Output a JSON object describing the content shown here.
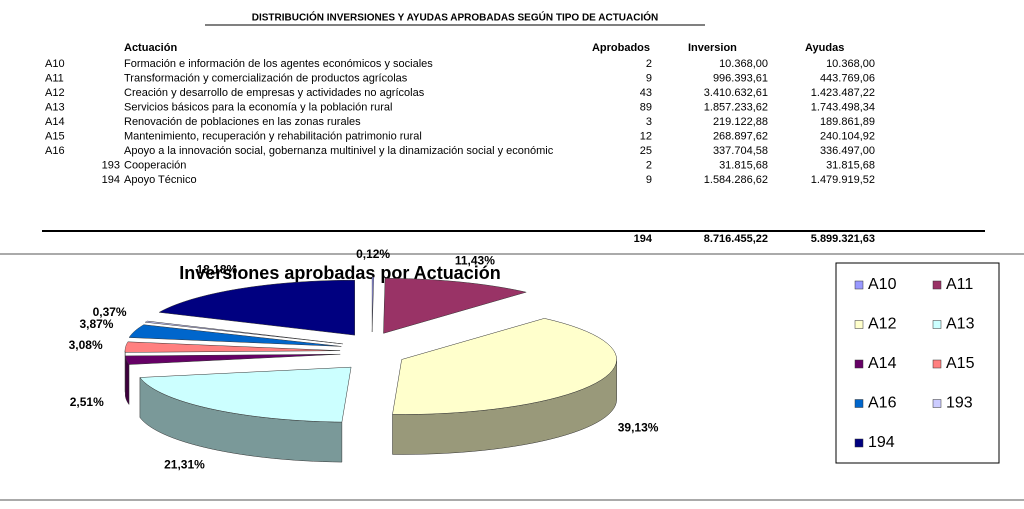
{
  "title": "DISTRIBUCIÓN INVERSIONES Y AYUDAS APROBADAS SEGÚN TIPO DE ACTUACIÓN",
  "table": {
    "columns": [
      "Actuación",
      "Aprobados",
      "Inversion",
      "Ayudas"
    ],
    "rows": [
      [
        "A10",
        "Formación e información de los agentes económicos y sociales",
        2,
        "10.368,00",
        "10.368,00"
      ],
      [
        "A11",
        "Transformación y comercialización de productos agrícolas",
        9,
        "996.393,61",
        "443.769,06"
      ],
      [
        "A12",
        "Creación y desarrollo de empresas y actividades no agrícolas",
        43,
        "3.410.632,61",
        "1.423.487,22"
      ],
      [
        "A13",
        "Servicios básicos para la economía y la población rural",
        89,
        "1.857.233,62",
        "1.743.498,34"
      ],
      [
        "A14",
        "Renovación de poblaciones en las zonas rurales",
        3,
        "219.122,88",
        "189.861,89"
      ],
      [
        "A15",
        "Mantenimiento, recuperación y rehabilitación patrimonio rural",
        12,
        "268.897,62",
        "240.104,92"
      ],
      [
        "A16",
        "Apoyo a la innovación social, gobernanza multinivel y la dinamización social y económic",
        25,
        "337.704,58",
        "336.497,00"
      ],
      [
        "193",
        "Cooperación",
        2,
        "31.815,68",
        "31.815,68"
      ],
      [
        "194",
        "Apoyo Técnico",
        9,
        "1.584.286,62",
        "1.479.919,52"
      ]
    ],
    "totals": [
      194,
      "8.716.455,22",
      "5.899.321,63"
    ]
  },
  "chart_data": {
    "type": "pie",
    "title": "Inversiones aprobadas por Actuación",
    "categories": [
      "A10",
      "A11",
      "A12",
      "A13",
      "A14",
      "A15",
      "A16",
      "193",
      "194"
    ],
    "values": [
      0.12,
      11.43,
      39.13,
      21.31,
      2.51,
      3.08,
      3.87,
      0.37,
      18.18
    ],
    "value_labels": [
      "0,12%",
      "11,43%",
      "39,13%",
      "21,31%",
      "2,51%",
      "3,08%",
      "3,87%",
      "0,37%",
      "18,18%"
    ],
    "colors": [
      "#9999ff",
      "#993366",
      "#ffffcc",
      "#ccffff",
      "#660066",
      "#ff8080",
      "#0066cc",
      "#ccccff",
      "#000080"
    ]
  }
}
